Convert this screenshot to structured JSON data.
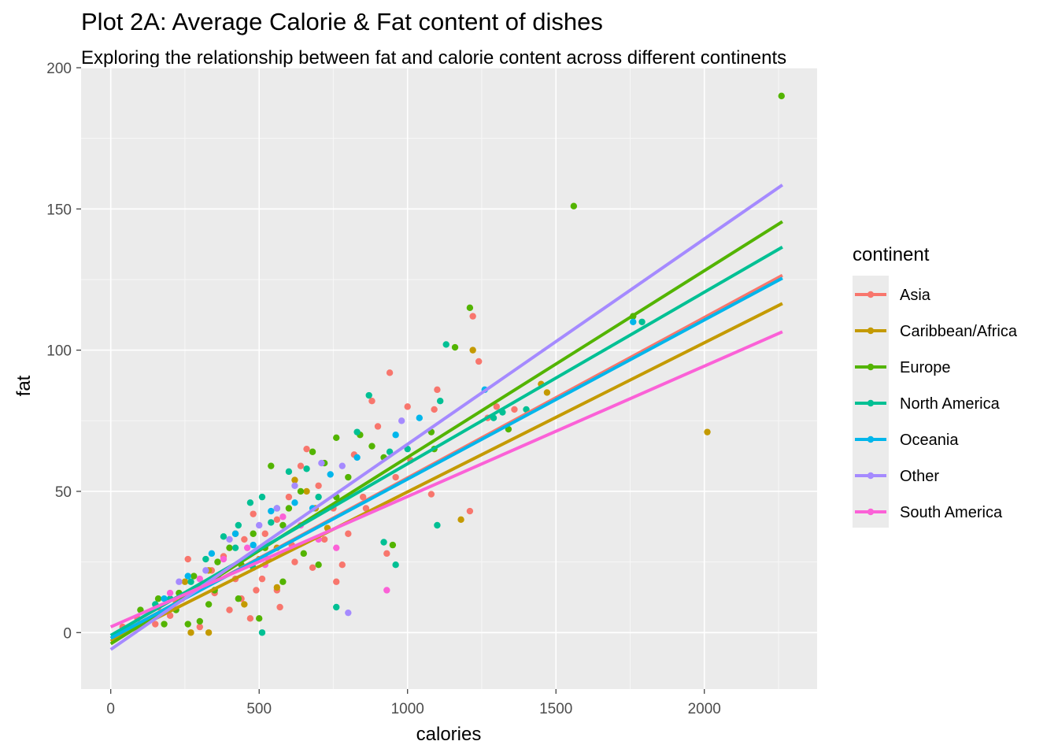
{
  "title": "Plot 2A: Average Calorie & Fat content of dishes",
  "subtitle": "Exploring the relationship between fat and calorie content across different continents",
  "chart_data": {
    "type": "scatter",
    "xlabel": "calories",
    "ylabel": "fat",
    "xlim": [
      -100,
      2380
    ],
    "ylim": [
      -20,
      200
    ],
    "x_ticks": [
      0,
      500,
      1000,
      1500,
      2000
    ],
    "y_ticks": [
      0,
      50,
      100,
      150,
      200
    ],
    "grid": true,
    "legend": {
      "title": "continent",
      "position": "right"
    },
    "series": [
      {
        "name": "Asia",
        "color": "#F8766D",
        "fit": {
          "x": [
            0,
            2263
          ],
          "y": [
            -2,
            126.5
          ]
        },
        "points": [
          [
            40,
            2
          ],
          [
            90,
            5
          ],
          [
            160,
            9
          ],
          [
            220,
            11
          ],
          [
            260,
            26
          ],
          [
            300,
            16
          ],
          [
            340,
            22
          ],
          [
            380,
            27
          ],
          [
            420,
            19
          ],
          [
            450,
            33
          ],
          [
            480,
            42
          ],
          [
            520,
            35
          ],
          [
            560,
            40
          ],
          [
            600,
            48
          ],
          [
            640,
            59
          ],
          [
            660,
            65
          ],
          [
            700,
            52
          ],
          [
            720,
            33
          ],
          [
            750,
            44
          ],
          [
            780,
            24
          ],
          [
            820,
            63
          ],
          [
            850,
            48
          ],
          [
            880,
            82
          ],
          [
            900,
            73
          ],
          [
            930,
            28
          ],
          [
            940,
            92
          ],
          [
            960,
            55
          ],
          [
            1000,
            80
          ],
          [
            1010,
            61
          ],
          [
            1080,
            49
          ],
          [
            1090,
            79
          ],
          [
            1100,
            86
          ],
          [
            1210,
            43
          ],
          [
            1220,
            112
          ],
          [
            1240,
            96
          ],
          [
            1270,
            76
          ],
          [
            1300,
            80
          ],
          [
            1360,
            79
          ],
          [
            440,
            12
          ],
          [
            490,
            15
          ],
          [
            510,
            19
          ],
          [
            530,
            26
          ],
          [
            560,
            15
          ],
          [
            620,
            25
          ],
          [
            680,
            23
          ],
          [
            800,
            35
          ],
          [
            860,
            44
          ],
          [
            760,
            18
          ],
          [
            470,
            5
          ],
          [
            300,
            2
          ],
          [
            570,
            9
          ],
          [
            610,
            31
          ],
          [
            350,
            14
          ],
          [
            400,
            8
          ],
          [
            240,
            12
          ],
          [
            200,
            6
          ],
          [
            150,
            3
          ]
        ]
      },
      {
        "name": "Caribbean/Africa",
        "color": "#C49A00",
        "fit": {
          "x": [
            0,
            2263
          ],
          "y": [
            -3,
            116.5
          ]
        },
        "points": [
          [
            250,
            18
          ],
          [
            330,
            22
          ],
          [
            420,
            35
          ],
          [
            500,
            26
          ],
          [
            560,
            30
          ],
          [
            620,
            54
          ],
          [
            660,
            50
          ],
          [
            730,
            37
          ],
          [
            1180,
            40
          ],
          [
            1220,
            100
          ],
          [
            1450,
            88
          ],
          [
            1470,
            85
          ],
          [
            2010,
            71
          ],
          [
            330,
            0
          ],
          [
            270,
            0
          ],
          [
            450,
            10
          ],
          [
            560,
            16
          ],
          [
            690,
            44
          ]
        ]
      },
      {
        "name": "Europe",
        "color": "#53B400",
        "fit": {
          "x": [
            0,
            2263
          ],
          "y": [
            -4,
            145.5
          ]
        },
        "points": [
          [
            100,
            8
          ],
          [
            180,
            3
          ],
          [
            230,
            14
          ],
          [
            280,
            20
          ],
          [
            330,
            10
          ],
          [
            360,
            25
          ],
          [
            400,
            30
          ],
          [
            440,
            24
          ],
          [
            480,
            35
          ],
          [
            520,
            30
          ],
          [
            540,
            59
          ],
          [
            580,
            38
          ],
          [
            600,
            44
          ],
          [
            640,
            50
          ],
          [
            680,
            64
          ],
          [
            720,
            60
          ],
          [
            760,
            69
          ],
          [
            800,
            55
          ],
          [
            840,
            70
          ],
          [
            880,
            66
          ],
          [
            920,
            62
          ],
          [
            950,
            31
          ],
          [
            1080,
            71
          ],
          [
            1090,
            65
          ],
          [
            1160,
            101
          ],
          [
            1210,
            115
          ],
          [
            1340,
            72
          ],
          [
            1560,
            151
          ],
          [
            1760,
            112
          ],
          [
            2260,
            190
          ],
          [
            300,
            4
          ],
          [
            350,
            15
          ],
          [
            430,
            12
          ],
          [
            500,
            5
          ],
          [
            580,
            18
          ],
          [
            650,
            28
          ],
          [
            700,
            24
          ],
          [
            760,
            48
          ],
          [
            220,
            8
          ],
          [
            160,
            12
          ],
          [
            260,
            3
          ]
        ]
      },
      {
        "name": "North America",
        "color": "#00C094",
        "fit": {
          "x": [
            0,
            2263
          ],
          "y": [
            -1,
            136.5
          ]
        },
        "points": [
          [
            150,
            10
          ],
          [
            200,
            12
          ],
          [
            270,
            18
          ],
          [
            320,
            26
          ],
          [
            380,
            34
          ],
          [
            430,
            38
          ],
          [
            470,
            46
          ],
          [
            510,
            48
          ],
          [
            560,
            44
          ],
          [
            600,
            57
          ],
          [
            660,
            58
          ],
          [
            700,
            48
          ],
          [
            760,
            9
          ],
          [
            830,
            71
          ],
          [
            870,
            84
          ],
          [
            920,
            32
          ],
          [
            940,
            64
          ],
          [
            960,
            24
          ],
          [
            1000,
            65
          ],
          [
            1100,
            38
          ],
          [
            1110,
            82
          ],
          [
            1130,
            102
          ],
          [
            1290,
            76
          ],
          [
            1320,
            78
          ],
          [
            1400,
            79
          ],
          [
            1790,
            110
          ],
          [
            510,
            0
          ],
          [
            360,
            20
          ],
          [
            420,
            30
          ],
          [
            480,
            23
          ],
          [
            540,
            39
          ]
        ]
      },
      {
        "name": "Oceania",
        "color": "#00B6EB",
        "fit": {
          "x": [
            0,
            2263
          ],
          "y": [
            -2,
            125.5
          ]
        },
        "points": [
          [
            180,
            12
          ],
          [
            260,
            20
          ],
          [
            340,
            28
          ],
          [
            420,
            35
          ],
          [
            480,
            31
          ],
          [
            540,
            43
          ],
          [
            620,
            46
          ],
          [
            680,
            44
          ],
          [
            740,
            56
          ],
          [
            830,
            62
          ],
          [
            960,
            70
          ],
          [
            1040,
            76
          ],
          [
            1260,
            86
          ],
          [
            1760,
            110
          ]
        ]
      },
      {
        "name": "Other",
        "color": "#A58AFF",
        "fit": {
          "x": [
            0,
            2263
          ],
          "y": [
            -6,
            158.5
          ]
        },
        "points": [
          [
            230,
            18
          ],
          [
            320,
            22
          ],
          [
            400,
            33
          ],
          [
            500,
            38
          ],
          [
            560,
            44
          ],
          [
            620,
            52
          ],
          [
            710,
            60
          ],
          [
            780,
            59
          ],
          [
            800,
            7
          ],
          [
            980,
            75
          ]
        ]
      },
      {
        "name": "South America",
        "color": "#FB61D7",
        "fit": {
          "x": [
            0,
            2263
          ],
          "y": [
            2,
            106.5
          ]
        },
        "points": [
          [
            200,
            14
          ],
          [
            300,
            19
          ],
          [
            380,
            26
          ],
          [
            460,
            30
          ],
          [
            520,
            24
          ],
          [
            580,
            41
          ],
          [
            640,
            38
          ],
          [
            700,
            33
          ],
          [
            930,
            15
          ],
          [
            760,
            30
          ]
        ]
      }
    ]
  }
}
